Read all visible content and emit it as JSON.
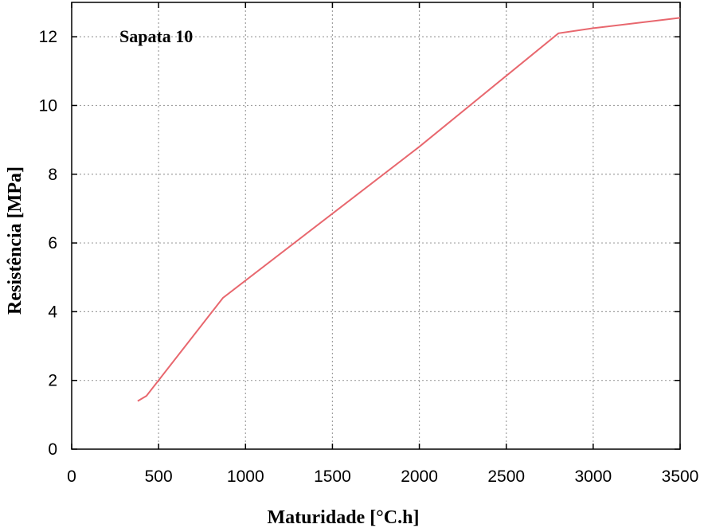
{
  "chart_data": {
    "type": "line",
    "title": "",
    "annotation": "Sapata 10",
    "xlabel": "Maturidade [°C.h]",
    "ylabel": "Resistência [MPa]",
    "xlim": [
      0,
      3500
    ],
    "ylim": [
      0,
      13
    ],
    "xticks": [
      0,
      500,
      1000,
      1500,
      2000,
      2500,
      3000,
      3500
    ],
    "yticks": [
      0,
      2,
      4,
      6,
      8,
      10,
      12
    ],
    "grid": true,
    "series": [
      {
        "name": "Sapata 10",
        "color": "#e8676e",
        "x": [
          380,
          430,
          870,
          2000,
          2800,
          3000,
          3500
        ],
        "y": [
          1.4,
          1.55,
          4.4,
          8.8,
          12.1,
          12.25,
          12.55
        ]
      }
    ]
  }
}
